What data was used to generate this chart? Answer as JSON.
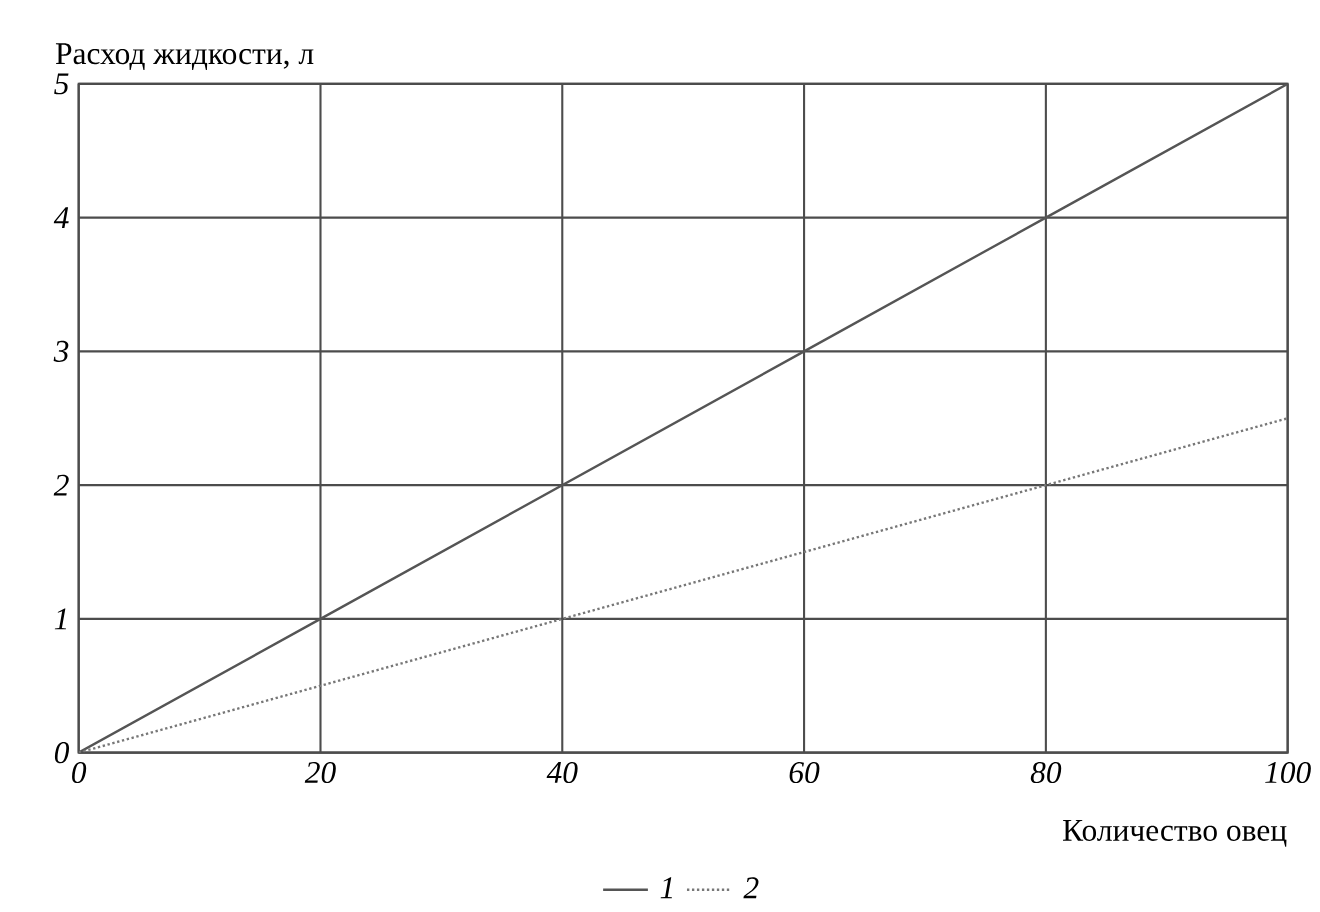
{
  "chart_data": {
    "type": "line",
    "xlabel": "Количество овец",
    "ylabel": "Расход жидкости, л",
    "x": [
      0,
      20,
      40,
      60,
      80,
      100
    ],
    "series": [
      {
        "name": "1",
        "color": "#555555",
        "line_style": "solid",
        "values": [
          0,
          1,
          2,
          3,
          4,
          5
        ]
      },
      {
        "name": "2",
        "color": "#777777",
        "line_style": "dotted",
        "values": [
          0,
          0.5,
          1,
          1.5,
          2,
          2.5
        ]
      }
    ],
    "xlim": [
      0,
      100
    ],
    "ylim": [
      0,
      5
    ],
    "xticks": [
      0,
      20,
      40,
      60,
      80,
      100
    ],
    "yticks": [
      0,
      1,
      2,
      3,
      4,
      5
    ],
    "grid": true,
    "legend": "bottom",
    "marker": "none"
  }
}
